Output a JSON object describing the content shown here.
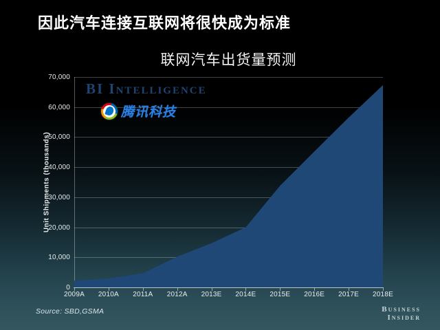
{
  "page": {
    "main_title": "因此汽车连接互联网将很快成为标准",
    "source_note": "Source: SBD,GSMA",
    "brand": {
      "line1": "Business",
      "line2": "Insider"
    }
  },
  "logos": {
    "bi_intelligence_label": "BI Intelligence",
    "tencent_label": "腾讯科技",
    "tencent_globe_icon": "tencent-globe-icon"
  },
  "chart_data": {
    "type": "area",
    "title": "联网汽车出货量预测",
    "xlabel": "",
    "ylabel": "Unit Shipments (thousands)",
    "categories": [
      "2009A",
      "2010A",
      "2011A",
      "2012A",
      "2013E",
      "2014E",
      "2015E",
      "2016E",
      "2017E",
      "2018E"
    ],
    "series": [
      {
        "name": "联网汽车出货量",
        "values": [
          2200,
          3000,
          4700,
          10200,
          14700,
          20000,
          33800,
          45200,
          56500,
          67300
        ]
      }
    ],
    "ylim": [
      0,
      70000
    ],
    "y_ticks": [
      0,
      10000,
      20000,
      30000,
      40000,
      50000,
      60000,
      70000
    ],
    "y_tick_labels": [
      "0",
      "10,000",
      "20,000",
      "30,000",
      "40,000",
      "50,000",
      "60,000",
      "70,000"
    ],
    "grid": true,
    "legend": "none",
    "colors": {
      "area_fill": "#1F4876",
      "background_top": "#000000",
      "background_bottom": "#34575F",
      "gridline": "rgba(255,255,255,0.26)",
      "axis_text": "#E9EDEE",
      "bi_logo_text": "#1E4472",
      "tencent_text": "#2B7FE0"
    }
  }
}
